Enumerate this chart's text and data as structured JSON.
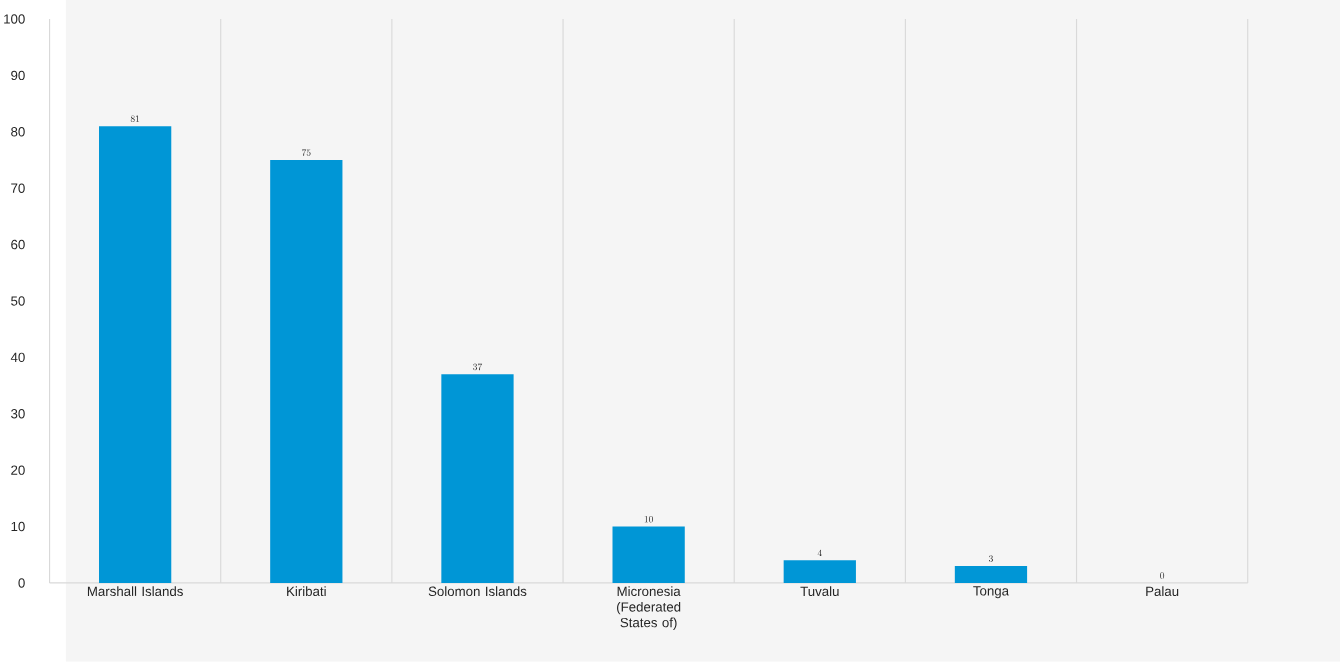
{
  "chart_data": {
    "type": "bar",
    "categories": [
      "Marshall Islands",
      "Kiribati",
      "Solomon Islands",
      "Micronesia (Federated States of)",
      "Tuvalu",
      "Tonga",
      "Palau"
    ],
    "values": [
      81,
      75,
      37,
      10,
      4,
      3,
      0
    ],
    "color": "#0096d6",
    "ylim": [
      0,
      100
    ],
    "yticks": [
      0,
      10,
      20,
      30,
      40,
      50,
      60,
      70,
      80,
      90,
      100
    ],
    "grid": "x",
    "data_labels": true
  }
}
